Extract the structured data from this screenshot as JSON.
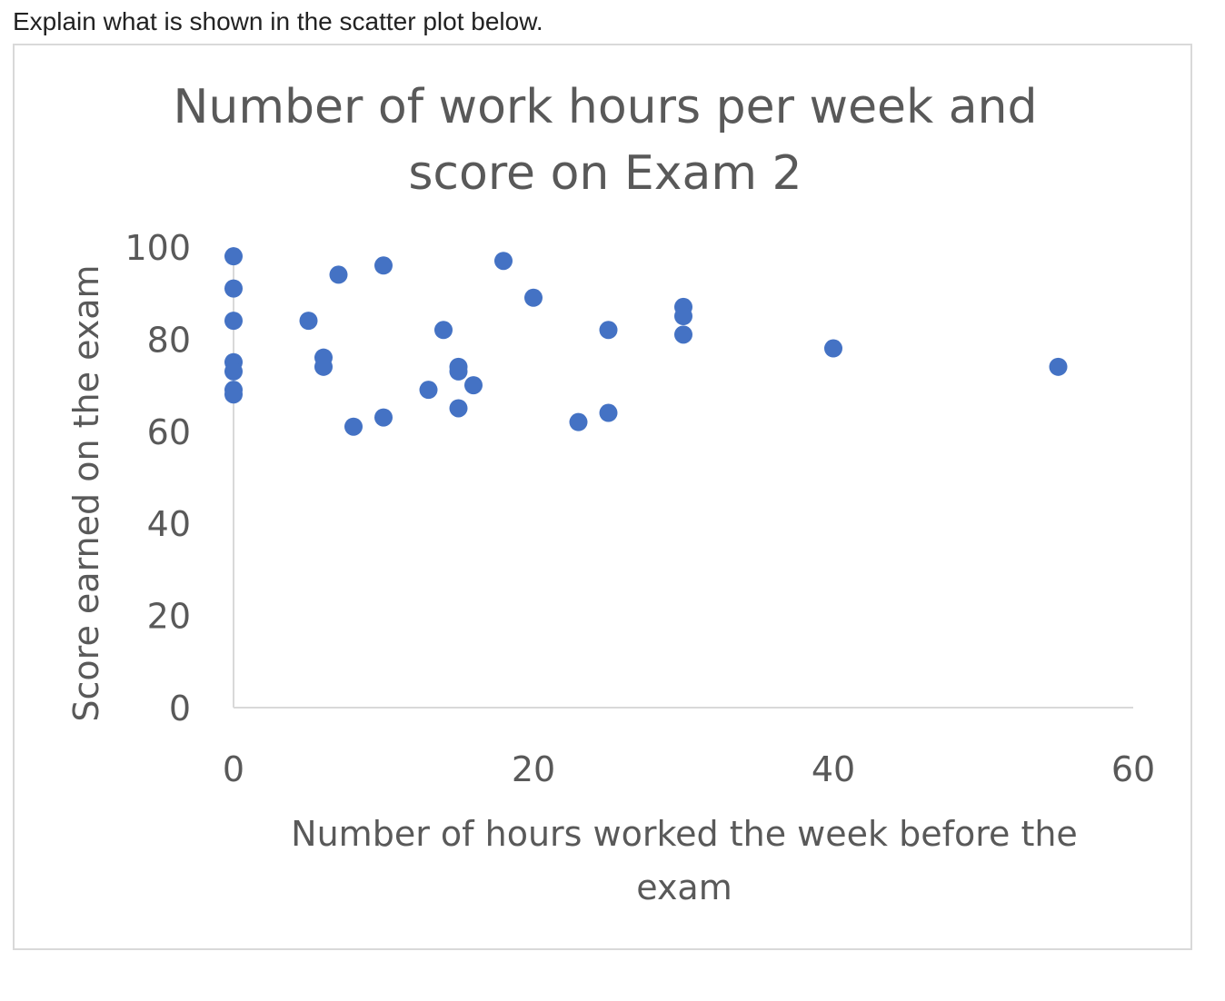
{
  "question": {
    "text": "Explain what is shown in the scatter plot below."
  },
  "chart_data": {
    "type": "scatter",
    "title": "Number of work hours per week and score on Exam 2",
    "title_lines": [
      "Number of work hours per week and",
      "score on Exam 2"
    ],
    "xlabel": "Number of hours worked the week before the exam",
    "xlabel_lines": [
      "Number of hours worked the week before the",
      "exam"
    ],
    "ylabel": "Score earned on the exam",
    "xlim": [
      0,
      60
    ],
    "ylim": [
      0,
      100
    ],
    "x_ticks": [
      0,
      20,
      40,
      60
    ],
    "y_ticks": [
      0,
      20,
      40,
      60,
      80,
      100
    ],
    "grid": false,
    "legend": "none",
    "marker_color": "#4472C4",
    "axis_color": "#d9d9d9",
    "text_color": "#595959",
    "points": [
      {
        "x": 0,
        "y": 98
      },
      {
        "x": 0,
        "y": 91
      },
      {
        "x": 0,
        "y": 84
      },
      {
        "x": 0,
        "y": 75
      },
      {
        "x": 0,
        "y": 73
      },
      {
        "x": 0,
        "y": 69
      },
      {
        "x": 0,
        "y": 68
      },
      {
        "x": 5,
        "y": 84
      },
      {
        "x": 6,
        "y": 76
      },
      {
        "x": 6,
        "y": 74
      },
      {
        "x": 7,
        "y": 94
      },
      {
        "x": 8,
        "y": 61
      },
      {
        "x": 10,
        "y": 96
      },
      {
        "x": 10,
        "y": 63
      },
      {
        "x": 13,
        "y": 69
      },
      {
        "x": 14,
        "y": 82
      },
      {
        "x": 15,
        "y": 74
      },
      {
        "x": 15,
        "y": 73
      },
      {
        "x": 15,
        "y": 65
      },
      {
        "x": 16,
        "y": 70
      },
      {
        "x": 18,
        "y": 97
      },
      {
        "x": 20,
        "y": 89
      },
      {
        "x": 23,
        "y": 62
      },
      {
        "x": 25,
        "y": 82
      },
      {
        "x": 25,
        "y": 64
      },
      {
        "x": 30,
        "y": 87
      },
      {
        "x": 30,
        "y": 85
      },
      {
        "x": 30,
        "y": 81
      },
      {
        "x": 40,
        "y": 78
      },
      {
        "x": 55,
        "y": 74
      }
    ]
  }
}
